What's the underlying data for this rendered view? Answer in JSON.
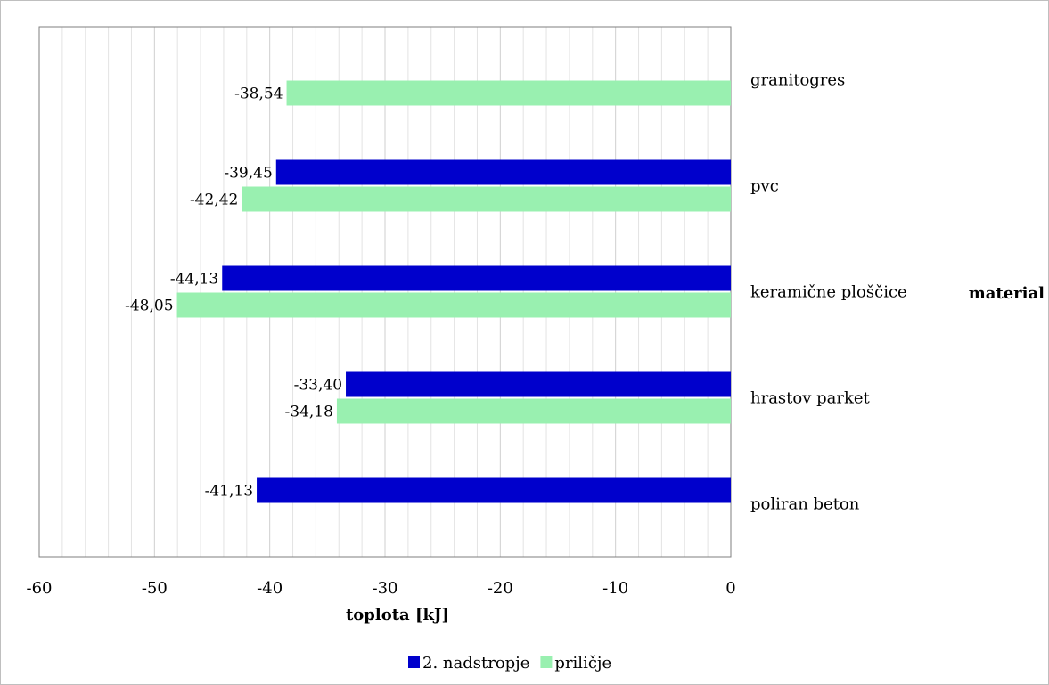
{
  "chart_data": {
    "type": "bar",
    "orientation": "horizontal",
    "title": "",
    "xlabel": "toplota [kJ]",
    "ylabel": "material",
    "xlim": [
      -60,
      0
    ],
    "xticks": [
      -60,
      -50,
      -40,
      -30,
      -20,
      -10,
      0
    ],
    "xtick_labels": [
      "-60",
      "-50",
      "-40",
      "-30",
      "-20",
      "-10",
      "0"
    ],
    "categories": [
      "granitogres",
      "pvc",
      "keramične ploščice",
      "hrastov parket",
      "poliran beton"
    ],
    "series": [
      {
        "name": "2. nadstropje",
        "color": "#0000cc",
        "values": [
          null,
          -39.45,
          -44.13,
          -33.4,
          -41.13
        ],
        "labels": [
          null,
          "-39,45",
          "-44,13",
          "-33,40",
          "-41,13"
        ]
      },
      {
        "name": "priličje",
        "color": "#99f0b0",
        "values": [
          -38.54,
          -42.42,
          -48.05,
          -34.18,
          null
        ],
        "labels": [
          "-38,54",
          "-42,42",
          "-48,05",
          "-34,18",
          null
        ]
      }
    ],
    "grid": "vertical minor",
    "legend_position": "bottom"
  }
}
